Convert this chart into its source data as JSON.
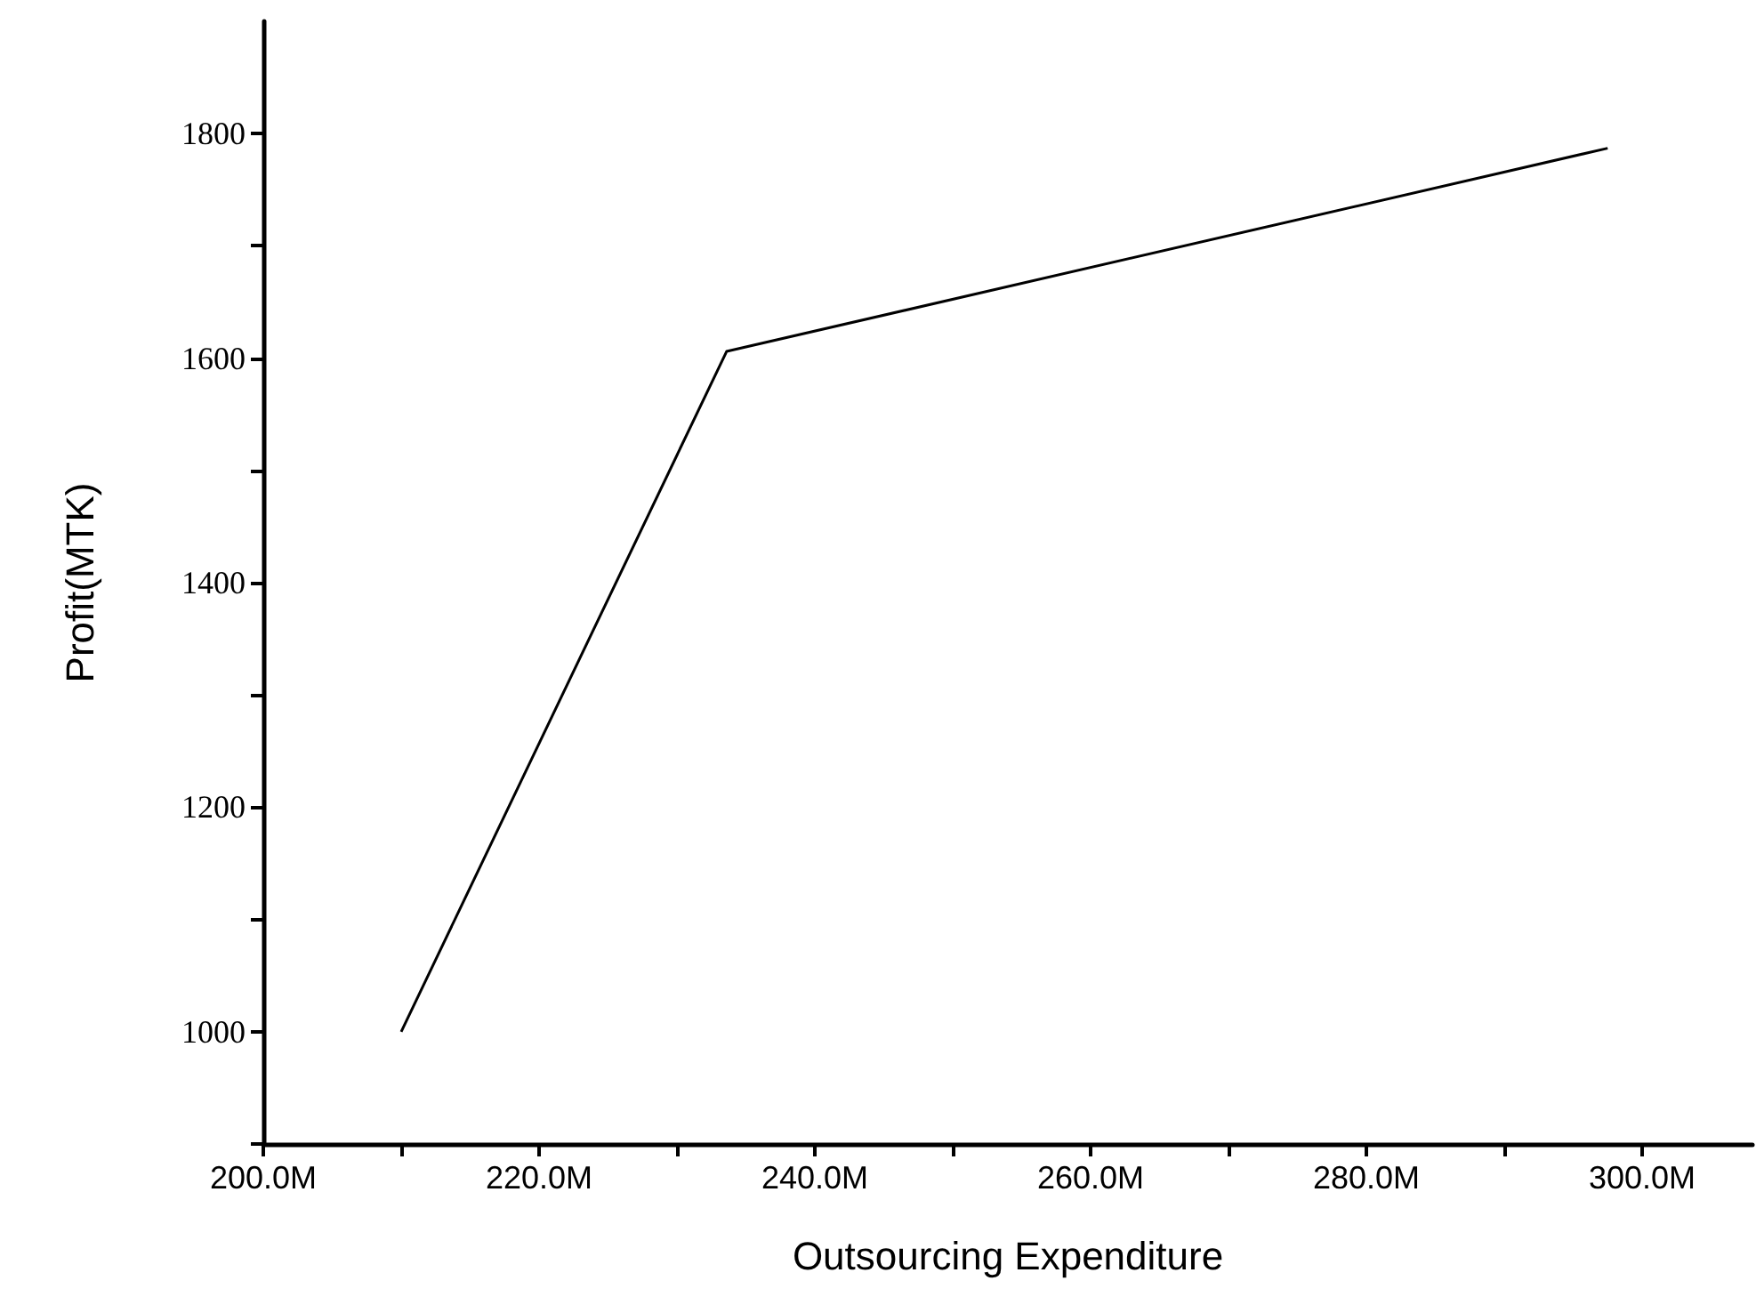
{
  "chart_data": {
    "type": "line",
    "xlabel": "Outsourcing Expenditure",
    "ylabel": "Profit(MTK)",
    "x": [
      210,
      233.6,
      297.5
    ],
    "series": [
      {
        "color": "#000000",
        "values": [
          1000,
          1606,
          1787
        ]
      }
    ],
    "xlim": [
      200,
      308
    ],
    "ylim": [
      900,
      1900
    ],
    "xticks": [
      {
        "value": 200,
        "label": "200.0M"
      },
      {
        "value": 210,
        "label": null
      },
      {
        "value": 220,
        "label": "220.0M"
      },
      {
        "value": 230,
        "label": null
      },
      {
        "value": 240,
        "label": "240.0M"
      },
      {
        "value": 250,
        "label": null
      },
      {
        "value": 260,
        "label": "260.0M"
      },
      {
        "value": 270,
        "label": null
      },
      {
        "value": 280,
        "label": "280.0M"
      },
      {
        "value": 290,
        "label": null
      },
      {
        "value": 300,
        "label": "300.0M"
      }
    ],
    "yticks": [
      {
        "value": 900,
        "label": null
      },
      1000,
      {
        "value": 1100,
        "label": null
      },
      1200,
      {
        "value": 1300,
        "label": null
      },
      1400,
      {
        "value": 1500,
        "label": null
      },
      1600,
      {
        "value": 1700,
        "label": null
      },
      1800
    ],
    "marker": "none",
    "line_style": "solid"
  }
}
